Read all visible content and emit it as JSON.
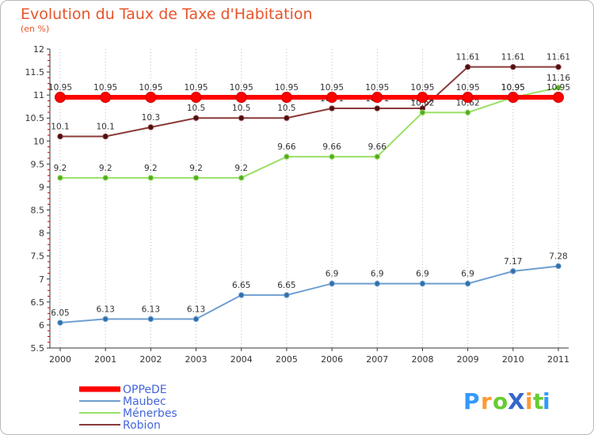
{
  "chart_data": {
    "type": "line",
    "title": "Evolution du Taux de Taxe d'Habitation",
    "subtitle": "(en %)",
    "x": [
      "2000",
      "2001",
      "2002",
      "2003",
      "2004",
      "2005",
      "2006",
      "2007",
      "2008",
      "2009",
      "2010",
      "2011"
    ],
    "ylim": [
      5.5,
      12
    ],
    "yticks": [
      "5.5",
      "6",
      "6.5",
      "7",
      "7.5",
      "8",
      "8.5",
      "9",
      "9.5",
      "10",
      "10.5",
      "11",
      "11.5",
      "12"
    ],
    "grid": "vertical dotted",
    "legend_position": "bottom-left",
    "series": [
      {
        "name": "OPPeDE",
        "color": "#ff0000",
        "values": [
          10.95,
          10.95,
          10.95,
          10.95,
          10.95,
          10.95,
          10.95,
          10.95,
          10.95,
          10.95,
          10.95,
          10.95
        ],
        "labels": [
          "10.95",
          "10.95",
          "10.95",
          "10.95",
          "10.95",
          "10.95",
          "10.95",
          "10.95",
          "10.95",
          "10.95",
          "10.95",
          "10.95"
        ]
      },
      {
        "name": "Maubec",
        "color": "#6e9fd0",
        "values": [
          6.05,
          6.13,
          6.13,
          6.13,
          6.65,
          6.65,
          6.9,
          6.9,
          6.9,
          6.9,
          7.17,
          7.28
        ],
        "labels": [
          "6.05",
          "6.13",
          "6.13",
          "6.13",
          "6.65",
          "6.65",
          "6.9",
          "6.9",
          "6.9",
          "6.9",
          "7.17",
          "7.28"
        ]
      },
      {
        "name": "Ménerbes",
        "color": "#99e066",
        "values": [
          9.2,
          9.2,
          9.2,
          9.2,
          9.2,
          9.66,
          9.66,
          9.66,
          10.62,
          10.62,
          10.95,
          11.16
        ],
        "labels": [
          "9.2",
          "9.2",
          "9.2",
          "9.2",
          "9.2",
          "9.66",
          "9.66",
          "9.66",
          "10.62",
          "10.62",
          "10.95",
          "11.16"
        ]
      },
      {
        "name": "Robion",
        "color": "#8a3a3a",
        "values": [
          10.1,
          10.1,
          10.3,
          10.5,
          10.5,
          10.5,
          10.71,
          10.71,
          10.71,
          11.61,
          11.61,
          11.61
        ],
        "labels": [
          "10.1",
          "10.1",
          "10.3",
          "10.5",
          "10.5",
          "10.5",
          "10.71",
          "10.71",
          "10.71",
          "11.61",
          "11.61",
          "11.61"
        ]
      }
    ]
  },
  "logo": {
    "text": "ProXiti",
    "letters": [
      "P",
      "r",
      "o",
      "X",
      "i",
      "t",
      "i"
    ],
    "colors": [
      "#3399ff",
      "#ff9933",
      "#66cc33",
      "#3366cc",
      "#ff9933",
      "#66cc33",
      "#3399ff"
    ]
  }
}
